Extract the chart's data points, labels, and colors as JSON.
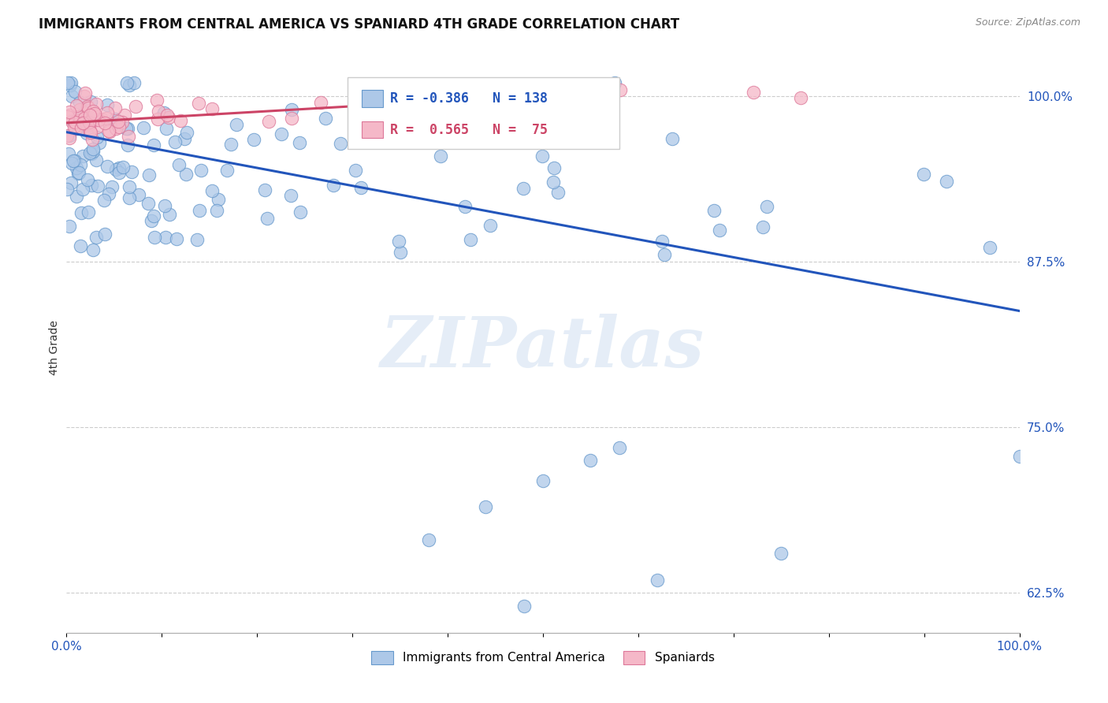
{
  "title": "IMMIGRANTS FROM CENTRAL AMERICA VS SPANIARD 4TH GRADE CORRELATION CHART",
  "source": "Source: ZipAtlas.com",
  "ylabel": "4th Grade",
  "ylabel_right_labels": [
    "100.0%",
    "87.5%",
    "75.0%",
    "62.5%"
  ],
  "ylabel_right_positions": [
    1.0,
    0.875,
    0.75,
    0.625
  ],
  "blue_R": -0.386,
  "blue_N": 138,
  "pink_R": 0.565,
  "pink_N": 75,
  "blue_color": "#adc8e8",
  "blue_edge_color": "#6699cc",
  "blue_line_color": "#2255bb",
  "pink_color": "#f5b8c8",
  "pink_edge_color": "#dd7799",
  "pink_line_color": "#cc4466",
  "legend_blue_label": "Immigrants from Central America",
  "legend_pink_label": "Spaniards",
  "watermark_text": "ZIPatlas",
  "xlim": [
    0.0,
    1.0
  ],
  "ylim": [
    0.595,
    1.025
  ],
  "blue_trend_x0": 0.0,
  "blue_trend_y0": 0.973,
  "blue_trend_x1": 1.0,
  "blue_trend_y1": 0.838,
  "pink_trend_x0": 0.0,
  "pink_trend_y0": 0.98,
  "pink_trend_x1": 0.55,
  "pink_trend_y1": 1.003,
  "grid_color": "#cccccc",
  "background_color": "#ffffff",
  "title_fontsize": 12,
  "axis_label_fontsize": 10,
  "tick_fontsize": 11,
  "legend_fontsize": 11
}
